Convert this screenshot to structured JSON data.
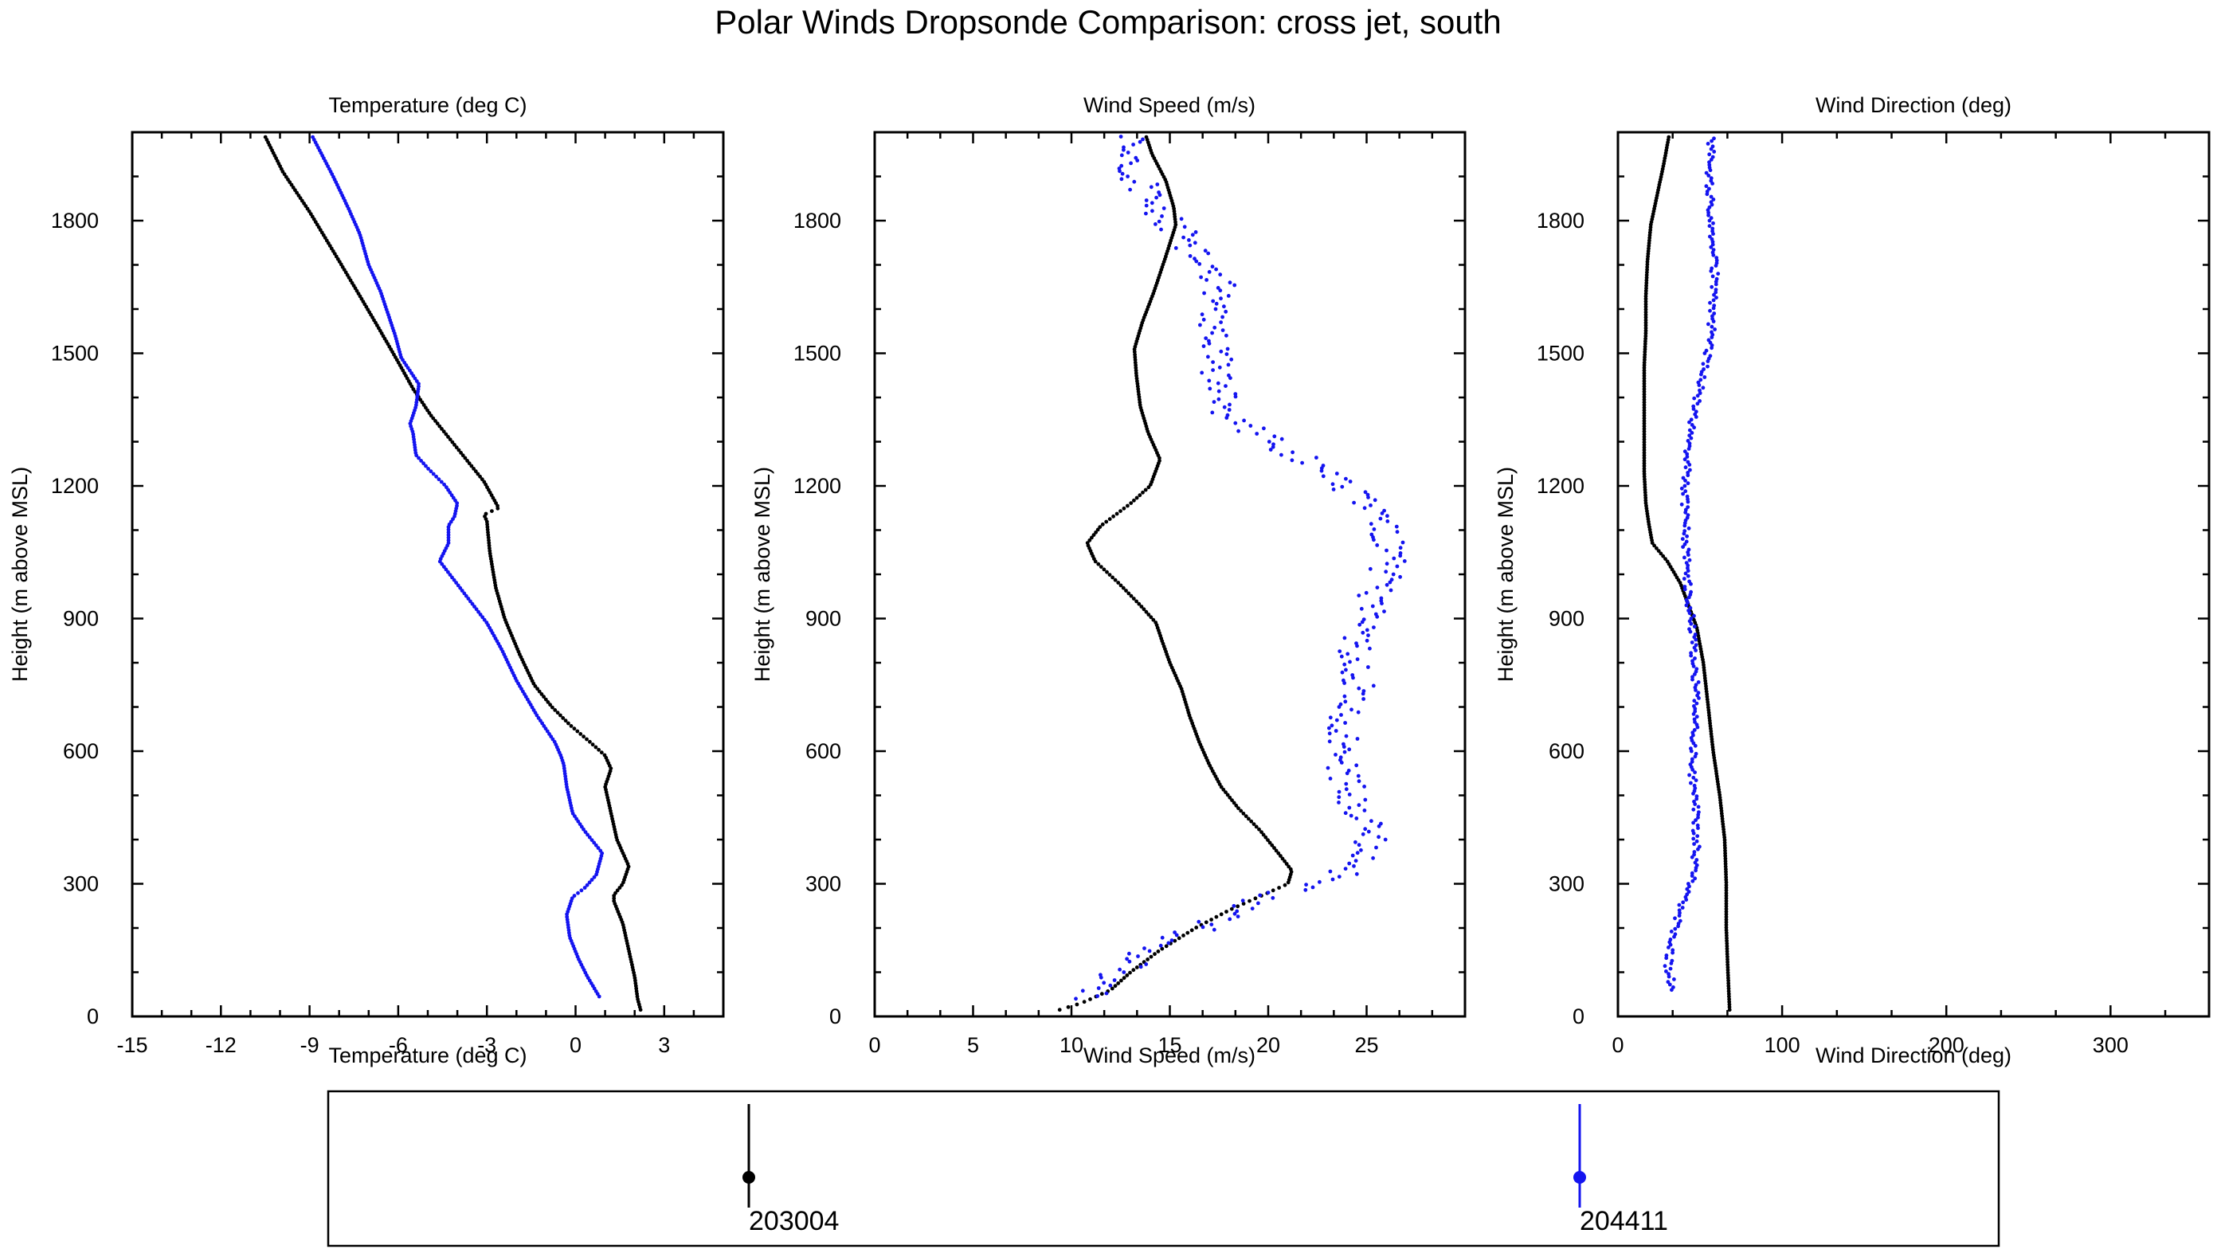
{
  "figure_title": "Polar Winds Dropsonde Comparison: cross jet, south",
  "colors": {
    "sonde_a": "#000000",
    "sonde_b": "#1414f0"
  },
  "legend": [
    {
      "label": "203004",
      "color": "#000000"
    },
    {
      "label": "204411",
      "color": "#1414f0"
    }
  ],
  "chart_data": [
    {
      "type": "scatter",
      "title": "Temperature (deg C)",
      "xlabel": "Temperature (deg C)",
      "ylabel": "Height (m above MSL)",
      "xlim": [
        -15,
        5
      ],
      "ylim": [
        0,
        2000
      ],
      "xticks": [
        "-15",
        "-12",
        "-9",
        "-6",
        "-3",
        "0",
        "3"
      ],
      "yticks": [
        "0",
        "300",
        "600",
        "900",
        "1200",
        "1500",
        "1800"
      ],
      "series": [
        {
          "name": "203004",
          "color": "#000000",
          "points": [
            [
              2.2,
              15
            ],
            [
              2.1,
              40
            ],
            [
              2.0,
              90
            ],
            [
              1.8,
              150
            ],
            [
              1.6,
              210
            ],
            [
              1.3,
              260
            ],
            [
              1.3,
              275
            ],
            [
              1.6,
              300
            ],
            [
              1.8,
              340
            ],
            [
              1.4,
              400
            ],
            [
              1.2,
              460
            ],
            [
              1.0,
              520
            ],
            [
              1.2,
              560
            ],
            [
              1.0,
              590
            ],
            [
              0.5,
              620
            ],
            [
              -0.2,
              660
            ],
            [
              -0.8,
              700
            ],
            [
              -1.4,
              750
            ],
            [
              -1.9,
              820
            ],
            [
              -2.4,
              900
            ],
            [
              -2.7,
              970
            ],
            [
              -2.9,
              1050
            ],
            [
              -3.0,
              1120
            ],
            [
              -3.1,
              1135
            ],
            [
              -2.6,
              1150
            ],
            [
              -3.1,
              1210
            ],
            [
              -3.7,
              1260
            ],
            [
              -4.3,
              1310
            ],
            [
              -4.9,
              1360
            ],
            [
              -5.5,
              1420
            ],
            [
              -6.0,
              1480
            ],
            [
              -6.6,
              1550
            ],
            [
              -7.3,
              1630
            ],
            [
              -8.1,
              1720
            ],
            [
              -9.0,
              1820
            ],
            [
              -9.9,
              1910
            ],
            [
              -10.5,
              1990
            ]
          ]
        },
        {
          "name": "204411",
          "color": "#1414f0",
          "points": [
            [
              0.8,
              45
            ],
            [
              0.4,
              90
            ],
            [
              0.1,
              130
            ],
            [
              -0.2,
              180
            ],
            [
              -0.3,
              230
            ],
            [
              -0.1,
              270
            ],
            [
              0.3,
              290
            ],
            [
              0.7,
              320
            ],
            [
              0.9,
              370
            ],
            [
              0.3,
              420
            ],
            [
              -0.1,
              460
            ],
            [
              -0.3,
              520
            ],
            [
              -0.4,
              570
            ],
            [
              -0.5,
              590
            ],
            [
              -0.7,
              620
            ],
            [
              -1.3,
              680
            ],
            [
              -2.0,
              760
            ],
            [
              -2.5,
              830
            ],
            [
              -3.0,
              890
            ],
            [
              -3.8,
              960
            ],
            [
              -4.6,
              1030
            ],
            [
              -4.3,
              1070
            ],
            [
              -4.3,
              1110
            ],
            [
              -4.1,
              1130
            ],
            [
              -4.0,
              1160
            ],
            [
              -4.4,
              1200
            ],
            [
              -5.0,
              1240
            ],
            [
              -5.4,
              1270
            ],
            [
              -5.5,
              1320
            ],
            [
              -5.6,
              1340
            ],
            [
              -5.4,
              1380
            ],
            [
              -5.3,
              1430
            ],
            [
              -5.9,
              1490
            ],
            [
              -6.1,
              1540
            ],
            [
              -6.6,
              1640
            ],
            [
              -7.0,
              1700
            ],
            [
              -7.3,
              1770
            ],
            [
              -7.7,
              1830
            ],
            [
              -8.2,
              1900
            ],
            [
              -8.9,
              1990
            ]
          ]
        }
      ]
    },
    {
      "type": "scatter",
      "title": "Wind Speed (m/s)",
      "xlabel": "Wind Speed (m/s)",
      "ylabel": "Height (m above MSL)",
      "xlim": [
        0,
        30
      ],
      "ylim": [
        0,
        2000
      ],
      "xticks": [
        "0",
        "5",
        "10",
        "15",
        "20",
        "25"
      ],
      "yticks": [
        "0",
        "300",
        "600",
        "900",
        "1200",
        "1500",
        "1800"
      ],
      "series": [
        {
          "name": "203004",
          "color": "#000000",
          "points": [
            [
              9.4,
              15
            ],
            [
              10.5,
              30
            ],
            [
              12.0,
              60
            ],
            [
              13.0,
              100
            ],
            [
              14.5,
              150
            ],
            [
              16.3,
              200
            ],
            [
              18.0,
              240
            ],
            [
              19.5,
              270
            ],
            [
              21.0,
              300
            ],
            [
              21.2,
              330
            ],
            [
              20.5,
              370
            ],
            [
              19.6,
              420
            ],
            [
              18.5,
              470
            ],
            [
              17.6,
              520
            ],
            [
              17.0,
              570
            ],
            [
              16.5,
              620
            ],
            [
              16.0,
              680
            ],
            [
              15.6,
              740
            ],
            [
              15.0,
              800
            ],
            [
              14.6,
              850
            ],
            [
              14.3,
              890
            ],
            [
              13.5,
              930
            ],
            [
              12.4,
              980
            ],
            [
              11.2,
              1030
            ],
            [
              10.8,
              1070
            ],
            [
              11.5,
              1110
            ],
            [
              13.0,
              1160
            ],
            [
              14.0,
              1200
            ],
            [
              14.5,
              1260
            ],
            [
              13.9,
              1320
            ],
            [
              13.5,
              1380
            ],
            [
              13.3,
              1450
            ],
            [
              13.2,
              1510
            ],
            [
              13.6,
              1570
            ],
            [
              14.2,
              1640
            ],
            [
              14.8,
              1720
            ],
            [
              15.3,
              1790
            ],
            [
              15.2,
              1830
            ],
            [
              14.8,
              1890
            ],
            [
              14.1,
              1950
            ],
            [
              13.8,
              1990
            ]
          ]
        },
        {
          "name": "204411",
          "color": "#1414f0",
          "points": [
            [
              10.8,
              40
            ],
            [
              11.5,
              70
            ],
            [
              12.5,
              100
            ],
            [
              13.7,
              140
            ],
            [
              15.0,
              170
            ],
            [
              16.6,
              200
            ],
            [
              18.3,
              240
            ],
            [
              20.0,
              270
            ],
            [
              21.5,
              290
            ],
            [
              22.8,
              300
            ],
            [
              24.0,
              330
            ],
            [
              25.2,
              360
            ],
            [
              25.0,
              420
            ],
            [
              24.4,
              480
            ],
            [
              23.8,
              540
            ],
            [
              24.1,
              600
            ],
            [
              23.7,
              650
            ],
            [
              24.0,
              700
            ],
            [
              24.6,
              760
            ],
            [
              24.5,
              810
            ],
            [
              24.3,
              860
            ],
            [
              25.0,
              910
            ],
            [
              25.6,
              960
            ],
            [
              26.0,
              1010
            ],
            [
              26.1,
              1060
            ],
            [
              25.9,
              1100
            ],
            [
              25.4,
              1140
            ],
            [
              24.3,
              1180
            ],
            [
              23.1,
              1220
            ],
            [
              21.8,
              1260
            ],
            [
              20.6,
              1290
            ],
            [
              19.4,
              1320
            ],
            [
              18.2,
              1350
            ],
            [
              17.6,
              1400
            ],
            [
              17.4,
              1460
            ],
            [
              17.2,
              1520
            ],
            [
              17.0,
              1570
            ],
            [
              17.6,
              1640
            ],
            [
              17.0,
              1690
            ],
            [
              16.0,
              1740
            ],
            [
              15.0,
              1800
            ],
            [
              13.8,
              1850
            ],
            [
              13.4,
              1890
            ],
            [
              13.2,
              1940
            ],
            [
              13.0,
              1990
            ]
          ]
        }
      ]
    },
    {
      "type": "scatter",
      "title": "Wind Direction (deg)",
      "xlabel": "Wind Direction (deg)",
      "ylabel": "Height (m above MSL)",
      "xlim": [
        0,
        360
      ],
      "ylim": [
        0,
        2000
      ],
      "xticks": [
        "0",
        "100",
        "200",
        "300"
      ],
      "yticks": [
        "0",
        "300",
        "600",
        "900",
        "1200",
        "1500",
        "1800"
      ],
      "series": [
        {
          "name": "203004",
          "color": "#000000",
          "points": [
            [
              68,
              15
            ],
            [
              67,
              100
            ],
            [
              66,
              200
            ],
            [
              66,
              300
            ],
            [
              65,
              400
            ],
            [
              62,
              500
            ],
            [
              58,
              600
            ],
            [
              55,
              700
            ],
            [
              52,
              800
            ],
            [
              48,
              880
            ],
            [
              43,
              930
            ],
            [
              38,
              980
            ],
            [
              30,
              1030
            ],
            [
              21,
              1070
            ],
            [
              19,
              1110
            ],
            [
              17,
              1160
            ],
            [
              16,
              1230
            ],
            [
              16,
              1310
            ],
            [
              16,
              1390
            ],
            [
              16,
              1470
            ],
            [
              17,
              1550
            ],
            [
              17,
              1630
            ],
            [
              18,
              1710
            ],
            [
              20,
              1790
            ],
            [
              24,
              1860
            ],
            [
              28,
              1930
            ],
            [
              31,
              1990
            ]
          ]
        },
        {
          "name": "204411",
          "color": "#1414f0",
          "points": [
            [
              34,
              60
            ],
            [
              30,
              110
            ],
            [
              33,
              170
            ],
            [
              37,
              230
            ],
            [
              42,
              280
            ],
            [
              47,
              330
            ],
            [
              48,
              400
            ],
            [
              47,
              480
            ],
            [
              45,
              560
            ],
            [
              47,
              640
            ],
            [
              48,
              720
            ],
            [
              47,
              800
            ],
            [
              45,
              880
            ],
            [
              43,
              960
            ],
            [
              42,
              1040
            ],
            [
              41,
              1120
            ],
            [
              41,
              1200
            ],
            [
              43,
              1280
            ],
            [
              46,
              1360
            ],
            [
              51,
              1440
            ],
            [
              56,
              1520
            ],
            [
              58,
              1600
            ],
            [
              59,
              1680
            ],
            [
              57,
              1760
            ],
            [
              56,
              1840
            ],
            [
              56,
              1920
            ],
            [
              57,
              1990
            ]
          ]
        }
      ]
    }
  ]
}
